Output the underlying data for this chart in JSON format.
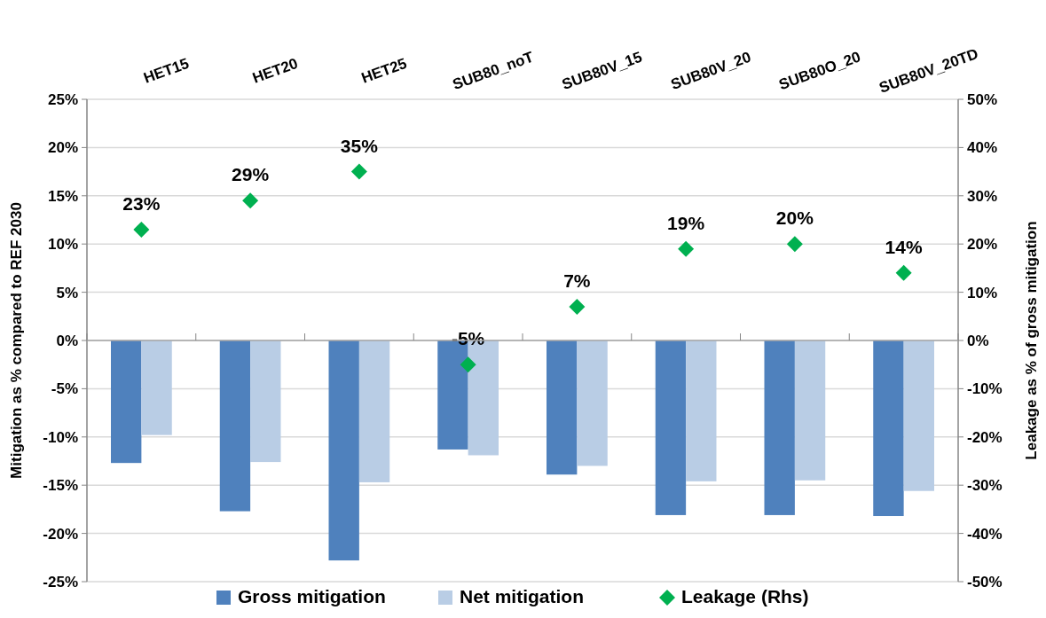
{
  "chart_data": {
    "type": "bar",
    "categories": [
      "HET15",
      "HET20",
      "HET25",
      "SUB80_noT",
      "SUB80V_15",
      "SUB80V_20",
      "SUB80O_20",
      "SUB80V_20TD"
    ],
    "series": [
      {
        "name": "Gross mitigation",
        "color": "#4f81bd",
        "values": [
          -12.7,
          -17.7,
          -22.8,
          -11.3,
          -13.9,
          -18.1,
          -18.1,
          -18.2
        ]
      },
      {
        "name": "Net mitigation",
        "color": "#b9cde5",
        "values": [
          -9.8,
          -12.6,
          -14.7,
          -11.9,
          -13.0,
          -14.6,
          -14.5,
          -15.6
        ]
      },
      {
        "name": "Leakage (Rhs)",
        "type": "scatter",
        "axis": "y2",
        "color": "#00b050",
        "marker": "diamond",
        "values": [
          23,
          29,
          35,
          -5,
          7,
          19,
          20,
          14
        ],
        "value_labels": [
          "23%",
          "29%",
          "35%",
          "-5%",
          "7%",
          "19%",
          "20%",
          "14%"
        ]
      }
    ],
    "ylabel": "Mitigation as % compared to REF 2030",
    "y2label": "Leakage as % of gross mitigation",
    "ylim": [
      -25,
      25
    ],
    "yticks": [
      {
        "value": -25,
        "label": "-25%"
      },
      {
        "value": -20,
        "label": "-20%"
      },
      {
        "value": -15,
        "label": "-15%"
      },
      {
        "value": -10,
        "label": "-10%"
      },
      {
        "value": -5,
        "label": "-5%"
      },
      {
        "value": 0,
        "label": "0%"
      },
      {
        "value": 5,
        "label": "5%"
      },
      {
        "value": 10,
        "label": "10%"
      },
      {
        "value": 15,
        "label": "15%"
      },
      {
        "value": 20,
        "label": "20%"
      },
      {
        "value": 25,
        "label": "25%"
      }
    ],
    "y2lim": [
      -50,
      50
    ],
    "y2ticks": [
      {
        "value": -50,
        "label": "-50%"
      },
      {
        "value": -40,
        "label": "-40%"
      },
      {
        "value": -30,
        "label": "-30%"
      },
      {
        "value": -20,
        "label": "-20%"
      },
      {
        "value": -10,
        "label": "-10%"
      },
      {
        "value": 0,
        "label": "0%"
      },
      {
        "value": 10,
        "label": "10%"
      },
      {
        "value": 20,
        "label": "20%"
      },
      {
        "value": 30,
        "label": "30%"
      },
      {
        "value": 40,
        "label": "40%"
      },
      {
        "value": 50,
        "label": "50%"
      }
    ],
    "grid": "y",
    "legend": "bottom"
  }
}
